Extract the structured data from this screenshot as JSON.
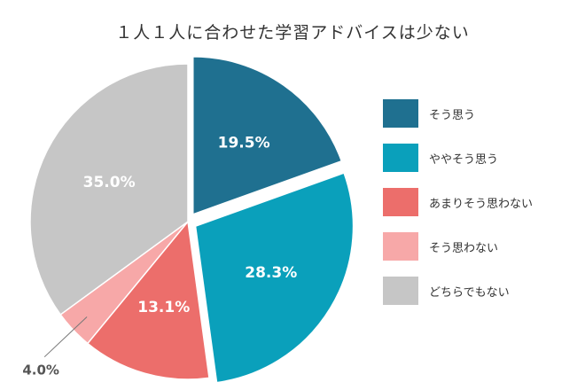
{
  "chart_data": {
    "type": "pie",
    "title": "１人１人に合わせた学習アドバイスは少ない",
    "slices": [
      {
        "name": "そう思う",
        "value": 19.5,
        "label": "19.5%",
        "color": "#1f7090"
      },
      {
        "name": "ややそう思う",
        "value": 28.3,
        "label": "28.3%",
        "color": "#0aa0bb"
      },
      {
        "name": "あまりそう思わない",
        "value": 13.1,
        "label": "13.1%",
        "color": "#ec6e6b"
      },
      {
        "name": "そう思わない",
        "value": 4.0,
        "label": "4.0%",
        "color": "#f7a8a8"
      },
      {
        "name": "どちらでもない",
        "value": 35.0,
        "label": "35.0%",
        "color": "#c6c6c6"
      }
    ],
    "exploded": [
      "そう思う",
      "ややそう思う"
    ],
    "legend_position": "right"
  }
}
